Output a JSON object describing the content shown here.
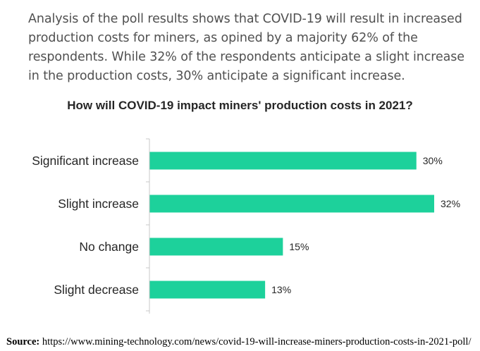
{
  "article": {
    "intro_text": "Analysis of the poll results shows that COVID-19 will result in increased production costs for miners, as opined by a majority 62% of the respondents. While 32% of the respondents anticipate a slight increase in the production costs, 30% anticipate a significant increase."
  },
  "chart_data": {
    "type": "bar",
    "orientation": "horizontal",
    "title": "How will COVID-19 impact miners' production costs in 2021?",
    "categories": [
      "Significant increase",
      "Slight increase",
      "No change",
      "Slight decrease"
    ],
    "values": [
      30,
      32,
      15,
      13
    ],
    "value_labels": [
      "30%",
      "32%",
      "15%",
      "13%"
    ],
    "xlabel": "",
    "ylabel": "",
    "xlim": [
      0,
      32
    ],
    "grid": false,
    "legend": "none",
    "bar_color": "#1dd19b"
  },
  "source": {
    "label": "Source:",
    "url": "https://www.mining-technology.com/news/covid-19-will-increase-miners-production-costs-in-2021-poll/"
  }
}
